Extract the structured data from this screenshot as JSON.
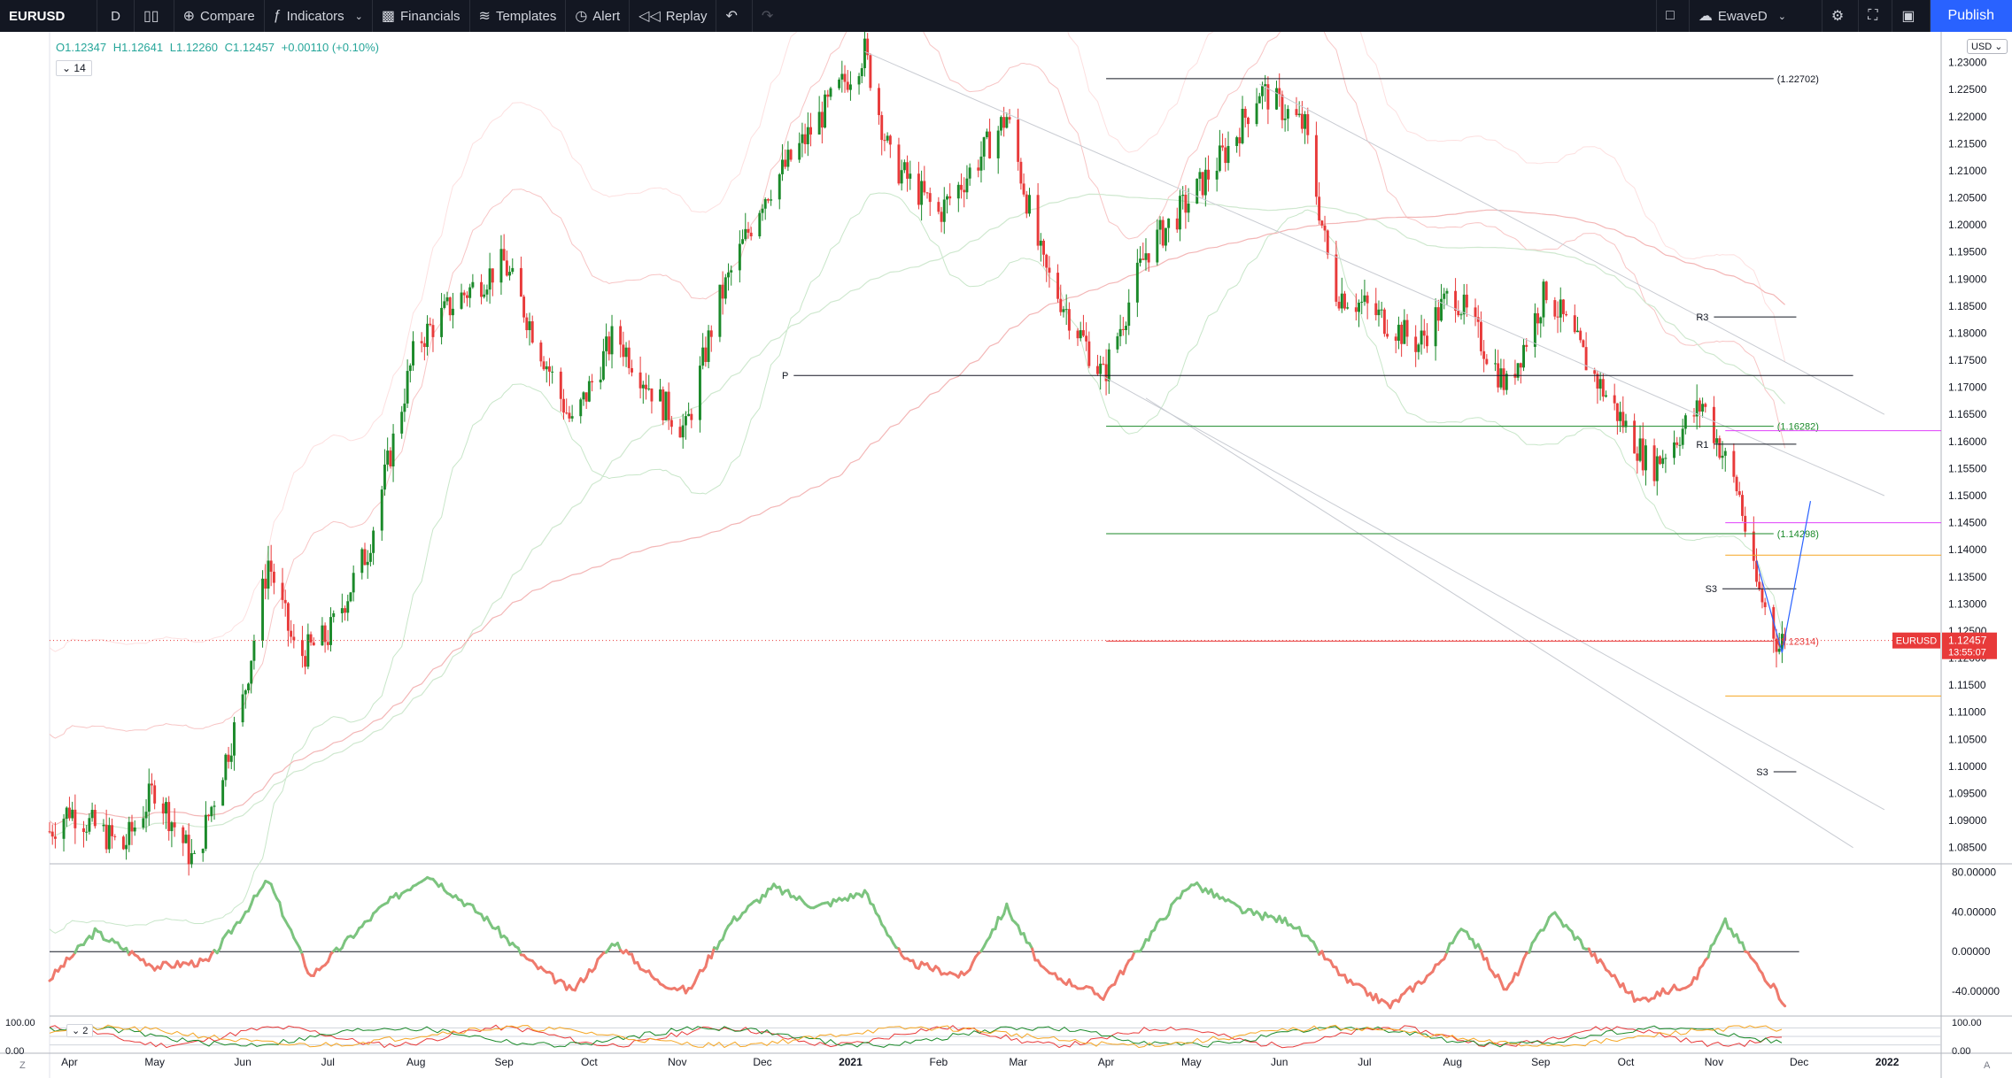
{
  "toolbar": {
    "symbol": "EURUSD",
    "interval": "D",
    "compare": "Compare",
    "indicators": "Indicators",
    "financials": "Financials",
    "templates": "Templates",
    "alert": "Alert",
    "replay": "Replay",
    "layout_name": "EwaveD",
    "publish": "Publish"
  },
  "legend": {
    "open": "O1.12347",
    "high": "H1.12641",
    "low": "L1.12260",
    "close": "C1.12457",
    "change": "+0.00110 (+0.10%)",
    "indicator_count": "14",
    "indicator_count_lower": "2",
    "currency": "USD"
  },
  "price_label": {
    "symbol": "EURUSD",
    "price": "1.12457",
    "countdown": "13:55:07"
  },
  "bottom": {
    "left_btn": "Z",
    "right_btn": "A"
  },
  "colors": {
    "up": "#26a69a",
    "candle_up": "#1b8a2a",
    "candle_down": "#e83a3a",
    "osc_up": "#7cc47f",
    "osc_down": "#ef7a6d",
    "accent": "#2962ff"
  },
  "chart_data": {
    "type": "candlestick",
    "symbol": "EURUSD",
    "interval": "D",
    "x_range": [
      "2020-03-25",
      "2022-01-20"
    ],
    "y_range": [
      1.082,
      1.235
    ],
    "y_ticks": [
      "1.23000",
      "1.22500",
      "1.22000",
      "1.21500",
      "1.21000",
      "1.20500",
      "1.20000",
      "1.19500",
      "1.19000",
      "1.18500",
      "1.18000",
      "1.17500",
      "1.17000",
      "1.16500",
      "1.16000",
      "1.15500",
      "1.15000",
      "1.14500",
      "1.14000",
      "1.13500",
      "1.13000",
      "1.12500",
      "1.12000",
      "1.11500",
      "1.11000",
      "1.10500",
      "1.10000",
      "1.09500",
      "1.09000",
      "1.08500"
    ],
    "x_ticks": [
      {
        "label": "Apr",
        "date": "2020-04-01"
      },
      {
        "label": "May",
        "date": "2020-05-01"
      },
      {
        "label": "Jun",
        "date": "2020-06-01"
      },
      {
        "label": "Jul",
        "date": "2020-07-01"
      },
      {
        "label": "Aug",
        "date": "2020-08-01"
      },
      {
        "label": "Sep",
        "date": "2020-09-01"
      },
      {
        "label": "Oct",
        "date": "2020-10-01"
      },
      {
        "label": "Nov",
        "date": "2020-11-01"
      },
      {
        "label": "Dec",
        "date": "2020-12-01"
      },
      {
        "label": "2021",
        "date": "2021-01-01"
      },
      {
        "label": "Feb",
        "date": "2021-02-01"
      },
      {
        "label": "Mar",
        "date": "2021-03-01"
      },
      {
        "label": "Apr",
        "date": "2021-04-01"
      },
      {
        "label": "May",
        "date": "2021-05-01"
      },
      {
        "label": "Jun",
        "date": "2021-06-01"
      },
      {
        "label": "Jul",
        "date": "2021-07-01"
      },
      {
        "label": "Aug",
        "date": "2021-08-01"
      },
      {
        "label": "Sep",
        "date": "2021-09-01"
      },
      {
        "label": "Oct",
        "date": "2021-10-01"
      },
      {
        "label": "Nov",
        "date": "2021-11-01"
      },
      {
        "label": "Dec",
        "date": "2021-12-01"
      },
      {
        "label": "2022",
        "date": "2022-01-01"
      }
    ],
    "close_path": [
      {
        "date": "2020-03-25",
        "close": 1.088
      },
      {
        "date": "2020-04-01",
        "close": 1.092
      },
      {
        "date": "2020-04-20",
        "close": 1.085
      },
      {
        "date": "2020-05-01",
        "close": 1.096
      },
      {
        "date": "2020-05-15",
        "close": 1.082
      },
      {
        "date": "2020-06-01",
        "close": 1.112
      },
      {
        "date": "2020-06-10",
        "close": 1.138
      },
      {
        "date": "2020-06-20",
        "close": 1.12
      },
      {
        "date": "2020-07-01",
        "close": 1.124
      },
      {
        "date": "2020-07-15",
        "close": 1.14
      },
      {
        "date": "2020-08-01",
        "close": 1.178
      },
      {
        "date": "2020-08-15",
        "close": 1.186
      },
      {
        "date": "2020-09-01",
        "close": 1.193
      },
      {
        "date": "2020-09-10",
        "close": 1.182
      },
      {
        "date": "2020-09-25",
        "close": 1.163
      },
      {
        "date": "2020-10-10",
        "close": 1.18
      },
      {
        "date": "2020-10-25",
        "close": 1.168
      },
      {
        "date": "2020-11-04",
        "close": 1.162
      },
      {
        "date": "2020-11-15",
        "close": 1.185
      },
      {
        "date": "2020-12-01",
        "close": 1.205
      },
      {
        "date": "2020-12-15",
        "close": 1.215
      },
      {
        "date": "2021-01-06",
        "close": 1.232
      },
      {
        "date": "2021-01-15",
        "close": 1.212
      },
      {
        "date": "2021-02-01",
        "close": 1.202
      },
      {
        "date": "2021-02-15",
        "close": 1.212
      },
      {
        "date": "2021-02-25",
        "close": 1.22
      },
      {
        "date": "2021-03-10",
        "close": 1.192
      },
      {
        "date": "2021-03-31",
        "close": 1.172
      },
      {
        "date": "2021-04-15",
        "close": 1.195
      },
      {
        "date": "2021-05-01",
        "close": 1.205
      },
      {
        "date": "2021-05-15",
        "close": 1.215
      },
      {
        "date": "2021-05-25",
        "close": 1.225
      },
      {
        "date": "2021-06-10",
        "close": 1.218
      },
      {
        "date": "2021-06-20",
        "close": 1.188
      },
      {
        "date": "2021-07-01",
        "close": 1.185
      },
      {
        "date": "2021-07-20",
        "close": 1.178
      },
      {
        "date": "2021-08-01",
        "close": 1.188
      },
      {
        "date": "2021-08-20",
        "close": 1.17
      },
      {
        "date": "2021-09-03",
        "close": 1.188
      },
      {
        "date": "2021-09-20",
        "close": 1.172
      },
      {
        "date": "2021-10-10",
        "close": 1.155
      },
      {
        "date": "2021-10-28",
        "close": 1.167
      },
      {
        "date": "2021-11-10",
        "close": 1.15
      },
      {
        "date": "2021-11-15",
        "close": 1.135
      },
      {
        "date": "2021-11-24",
        "close": 1.122
      },
      {
        "date": "2021-11-26",
        "close": 1.1246
      }
    ],
    "horizontal_levels": [
      {
        "label": "(1.22702)",
        "price": 1.22702,
        "color": "#131722"
      },
      {
        "label": "P",
        "price": 1.1722,
        "color": "#131722"
      },
      {
        "label": "R3",
        "price": 1.183,
        "color": "#131722"
      },
      {
        "label": "(1.16282)",
        "price": 1.16282,
        "color": "#1b8a2a"
      },
      {
        "label": "R1",
        "price": 1.1595,
        "color": "#131722"
      },
      {
        "label": "(1.14298)",
        "price": 1.14298,
        "color": "#1b8a2a"
      },
      {
        "label": "S3",
        "price": 1.1328,
        "color": "#131722"
      },
      {
        "label": "(1.12314)",
        "price": 1.12314,
        "color": "#e83a3a"
      },
      {
        "label": "S3",
        "price": 1.099,
        "color": "#131722"
      },
      {
        "label": "",
        "price": 1.162,
        "color": "#e040fb"
      },
      {
        "label": "",
        "price": 1.145,
        "color": "#e040fb"
      },
      {
        "label": "",
        "price": 1.139,
        "color": "#f5a623"
      },
      {
        "label": "",
        "price": 1.113,
        "color": "#f5a623"
      }
    ],
    "oscillator": {
      "y_ticks": [
        "80.00000",
        "40.00000",
        "0.00000",
        "-40.00000"
      ],
      "y_range": [
        -65,
        85
      ],
      "zero_line": 0,
      "values": [
        {
          "date": "2020-03-25",
          "value": -28
        },
        {
          "date": "2020-04-10",
          "value": 20
        },
        {
          "date": "2020-05-01",
          "value": -15
        },
        {
          "date": "2020-05-20",
          "value": -10
        },
        {
          "date": "2020-06-10",
          "value": 72
        },
        {
          "date": "2020-06-25",
          "value": -25
        },
        {
          "date": "2020-07-20",
          "value": 45
        },
        {
          "date": "2020-08-05",
          "value": 78
        },
        {
          "date": "2020-08-25",
          "value": 35
        },
        {
          "date": "2020-09-10",
          "value": -10
        },
        {
          "date": "2020-09-25",
          "value": -40
        },
        {
          "date": "2020-10-10",
          "value": 10
        },
        {
          "date": "2020-10-25",
          "value": -30
        },
        {
          "date": "2020-11-05",
          "value": -40
        },
        {
          "date": "2020-11-20",
          "value": 30
        },
        {
          "date": "2020-12-05",
          "value": 65
        },
        {
          "date": "2020-12-20",
          "value": 45
        },
        {
          "date": "2021-01-06",
          "value": 60
        },
        {
          "date": "2021-01-20",
          "value": -10
        },
        {
          "date": "2021-02-10",
          "value": -25
        },
        {
          "date": "2021-02-25",
          "value": 45
        },
        {
          "date": "2021-03-10",
          "value": -20
        },
        {
          "date": "2021-03-31",
          "value": -45
        },
        {
          "date": "2021-04-20",
          "value": 30
        },
        {
          "date": "2021-05-01",
          "value": 70
        },
        {
          "date": "2021-05-20",
          "value": 40
        },
        {
          "date": "2021-06-05",
          "value": 30
        },
        {
          "date": "2021-06-25",
          "value": -30
        },
        {
          "date": "2021-07-10",
          "value": -55
        },
        {
          "date": "2021-07-25",
          "value": -20
        },
        {
          "date": "2021-08-05",
          "value": 25
        },
        {
          "date": "2021-08-20",
          "value": -40
        },
        {
          "date": "2021-09-05",
          "value": 40
        },
        {
          "date": "2021-09-15",
          "value": 10
        },
        {
          "date": "2021-10-05",
          "value": -50
        },
        {
          "date": "2021-10-25",
          "value": -30
        },
        {
          "date": "2021-11-05",
          "value": 30
        },
        {
          "date": "2021-11-15",
          "value": -10
        },
        {
          "date": "2021-11-26",
          "value": -52
        }
      ]
    },
    "lower_pane": {
      "y_ticks": [
        "100.00",
        "0.00"
      ],
      "y_range": [
        0,
        100
      ]
    }
  }
}
